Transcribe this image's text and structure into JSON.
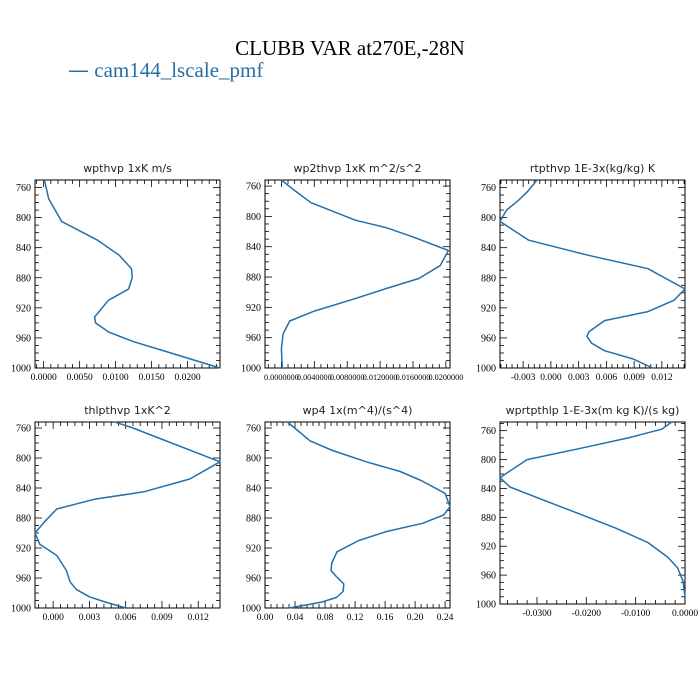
{
  "title": "CLUBB VAR at270E,-28N",
  "legend": {
    "dash": "—",
    "label": "cam144_lscale_pmf"
  },
  "colors": {
    "line": "#2470a8",
    "axis": "#000000"
  },
  "chart_data": [
    {
      "type": "line",
      "title": "wpthvp  1xK m/s",
      "xlim": [
        -0.0012,
        0.0245
      ],
      "ylim": [
        1000,
        750
      ],
      "yticks": [
        760,
        800,
        840,
        880,
        920,
        960,
        1000
      ],
      "xticks": [
        0.0,
        0.005,
        0.01,
        0.015,
        0.02
      ],
      "xticklabels": [
        "0.0000",
        "0.0050",
        "0.0100",
        "0.0150",
        "0.0200"
      ],
      "grid": false,
      "series": [
        {
          "x": [
            0.0001,
            0.0007,
            0.0025,
            0.0075,
            0.0105,
            0.0122,
            0.0123,
            0.0118,
            0.009,
            0.0071,
            0.0072,
            0.009,
            0.0125,
            0.017,
            0.0245
          ],
          "y": [
            750,
            775,
            805,
            830,
            850,
            868,
            880,
            895,
            910,
            932,
            940,
            952,
            965,
            978,
            1000
          ]
        }
      ]
    },
    {
      "type": "line",
      "title": "wp2thvp  1xK m^2/s^2",
      "xlim": [
        -0.002,
        0.0205
      ],
      "ylim": [
        1000,
        752
      ],
      "yticks": [
        760,
        800,
        840,
        880,
        920,
        960,
        1000
      ],
      "xticks": [
        0.0,
        0.004,
        0.008,
        0.012,
        0.016,
        0.02
      ],
      "xticklabels": [
        "0.0000000",
        "0.0040000",
        "0.0080000",
        "0.0120000",
        "0.0160000",
        "0.0200000"
      ],
      "grid": false,
      "series": [
        {
          "x": [
            0.0,
            0.0015,
            0.0036,
            0.009,
            0.0128,
            0.016,
            0.0203,
            0.0193,
            0.0167,
            0.0128,
            0.0085,
            0.004,
            0.001,
            0.0002,
            0.0,
            0.0001
          ],
          "y": [
            752,
            765,
            782,
            805,
            815,
            827,
            845,
            865,
            882,
            895,
            910,
            925,
            938,
            955,
            975,
            1000
          ]
        }
      ]
    },
    {
      "type": "line",
      "title": "rtpthvp  1E-3x(kg/kg) K",
      "xlim": [
        -0.0055,
        0.0145
      ],
      "ylim": [
        1000,
        750
      ],
      "yticks": [
        760,
        800,
        840,
        880,
        920,
        960,
        1000
      ],
      "xticks": [
        -0.003,
        0.0,
        0.003,
        0.006,
        0.009,
        0.012
      ],
      "xticklabels": [
        "-0.003",
        "0.000",
        "0.003",
        "0.006",
        "0.009",
        "0.012"
      ],
      "grid": false,
      "series": [
        {
          "x": [
            -0.0015,
            -0.0025,
            -0.0035,
            -0.0048,
            -0.0055,
            -0.0024,
            0.004,
            0.0105,
            0.0145,
            0.0133,
            0.0105,
            0.0058,
            0.0041,
            0.0039,
            0.0044,
            0.0058,
            0.0089,
            0.011
          ],
          "y": [
            750,
            765,
            777,
            790,
            805,
            830,
            850,
            868,
            895,
            910,
            925,
            937,
            952,
            958,
            967,
            977,
            988,
            1000
          ]
        }
      ]
    },
    {
      "type": "line",
      "title": "thlpthvp  1xK^2",
      "xlim": [
        -0.0015,
        0.0138
      ],
      "ylim": [
        1000,
        752
      ],
      "yticks": [
        760,
        800,
        840,
        880,
        920,
        960,
        1000
      ],
      "xticks": [
        0.0,
        0.003,
        0.006,
        0.009,
        0.012
      ],
      "xticklabels": [
        "0.000",
        "0.003",
        "0.006",
        "0.009",
        "0.012"
      ],
      "grid": false,
      "series": [
        {
          "x": [
            0.0051,
            0.0066,
            0.0138,
            0.0113,
            0.0075,
            0.0034,
            0.0003,
            -0.0006,
            -0.0015,
            -0.0011,
            0.0003,
            0.0011,
            0.0014,
            0.0019,
            0.003,
            0.0043,
            0.006
          ],
          "y": [
            752,
            760,
            805,
            828,
            845,
            855,
            868,
            883,
            900,
            915,
            930,
            950,
            965,
            975,
            985,
            992,
            1000
          ]
        }
      ]
    },
    {
      "type": "line",
      "title": "wp4  1x(m^4)/(s^4)",
      "xlim": [
        0.0,
        0.2465
      ],
      "ylim": [
        1000,
        752
      ],
      "yticks": [
        760,
        800,
        840,
        880,
        920,
        960,
        1000
      ],
      "xticks": [
        0.0,
        0.04,
        0.08,
        0.12,
        0.16,
        0.2,
        0.24
      ],
      "xticklabels": [
        "0.00",
        "0.04",
        "0.08",
        "0.12",
        "0.16",
        "0.20",
        "0.24"
      ],
      "grid": false,
      "series": [
        {
          "x": [
            0.03,
            0.042,
            0.06,
            0.09,
            0.135,
            0.18,
            0.208,
            0.24,
            0.2465,
            0.238,
            0.21,
            0.162,
            0.125,
            0.096,
            0.089,
            0.088,
            0.095,
            0.105,
            0.104,
            0.095,
            0.076,
            0.055,
            0.032
          ],
          "y": [
            752,
            762,
            777,
            790,
            805,
            818,
            830,
            847,
            865,
            876,
            887,
            898,
            910,
            925,
            940,
            950,
            958,
            968,
            978,
            986,
            992,
            996,
            1000
          ]
        }
      ]
    },
    {
      "type": "line",
      "title": "wprtpthlp  1-E-3x(m kg K)/(s kg)",
      "xlim": [
        -0.0375,
        0.0
      ],
      "ylim": [
        1000,
        748
      ],
      "yticks": [
        760,
        800,
        840,
        880,
        920,
        960,
        1000
      ],
      "xticks": [
        -0.03,
        -0.02,
        -0.01,
        0.0
      ],
      "xticklabels": [
        "-0.0300",
        "-0.0200",
        "-0.0100",
        "0.0000"
      ],
      "grid": false,
      "series": [
        {
          "x": [
            -0.0027,
            -0.0047,
            -0.0115,
            -0.0215,
            -0.032,
            -0.0375,
            -0.0355,
            -0.028,
            -0.0215,
            -0.014,
            -0.0075,
            -0.0035,
            -0.0015,
            -0.0004,
            0.0
          ],
          "y": [
            748,
            758,
            770,
            785,
            800,
            825,
            838,
            858,
            875,
            895,
            915,
            935,
            950,
            968,
            990
          ]
        }
      ]
    }
  ]
}
